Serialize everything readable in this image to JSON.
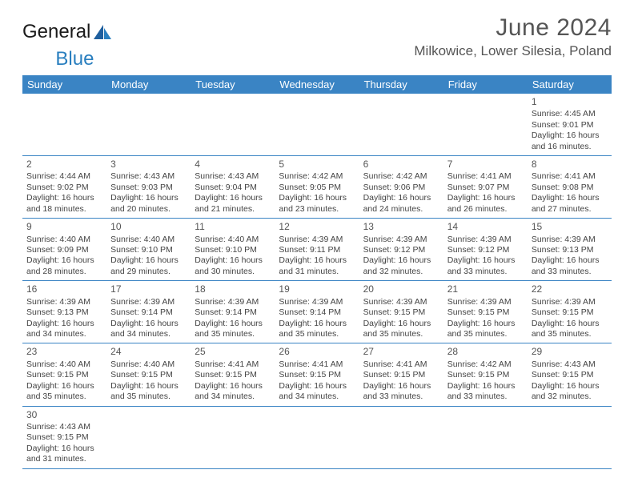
{
  "brand": {
    "part1": "General",
    "part2": "Blue"
  },
  "title": "June 2024",
  "location": "Milkowice, Lower Silesia, Poland",
  "colors": {
    "header_bg": "#3a84c4",
    "header_text": "#ffffff",
    "row_border": "#3a84c4",
    "text": "#444444",
    "title_color": "#555555",
    "logo_blue": "#2a7fbf"
  },
  "daynames": [
    "Sunday",
    "Monday",
    "Tuesday",
    "Wednesday",
    "Thursday",
    "Friday",
    "Saturday"
  ],
  "weeks": [
    [
      {
        "day": "",
        "info": ""
      },
      {
        "day": "",
        "info": ""
      },
      {
        "day": "",
        "info": ""
      },
      {
        "day": "",
        "info": ""
      },
      {
        "day": "",
        "info": ""
      },
      {
        "day": "",
        "info": ""
      },
      {
        "day": "1",
        "info": "Sunrise: 4:45 AM\nSunset: 9:01 PM\nDaylight: 16 hours and 16 minutes."
      }
    ],
    [
      {
        "day": "2",
        "info": "Sunrise: 4:44 AM\nSunset: 9:02 PM\nDaylight: 16 hours and 18 minutes."
      },
      {
        "day": "3",
        "info": "Sunrise: 4:43 AM\nSunset: 9:03 PM\nDaylight: 16 hours and 20 minutes."
      },
      {
        "day": "4",
        "info": "Sunrise: 4:43 AM\nSunset: 9:04 PM\nDaylight: 16 hours and 21 minutes."
      },
      {
        "day": "5",
        "info": "Sunrise: 4:42 AM\nSunset: 9:05 PM\nDaylight: 16 hours and 23 minutes."
      },
      {
        "day": "6",
        "info": "Sunrise: 4:42 AM\nSunset: 9:06 PM\nDaylight: 16 hours and 24 minutes."
      },
      {
        "day": "7",
        "info": "Sunrise: 4:41 AM\nSunset: 9:07 PM\nDaylight: 16 hours and 26 minutes."
      },
      {
        "day": "8",
        "info": "Sunrise: 4:41 AM\nSunset: 9:08 PM\nDaylight: 16 hours and 27 minutes."
      }
    ],
    [
      {
        "day": "9",
        "info": "Sunrise: 4:40 AM\nSunset: 9:09 PM\nDaylight: 16 hours and 28 minutes."
      },
      {
        "day": "10",
        "info": "Sunrise: 4:40 AM\nSunset: 9:10 PM\nDaylight: 16 hours and 29 minutes."
      },
      {
        "day": "11",
        "info": "Sunrise: 4:40 AM\nSunset: 9:10 PM\nDaylight: 16 hours and 30 minutes."
      },
      {
        "day": "12",
        "info": "Sunrise: 4:39 AM\nSunset: 9:11 PM\nDaylight: 16 hours and 31 minutes."
      },
      {
        "day": "13",
        "info": "Sunrise: 4:39 AM\nSunset: 9:12 PM\nDaylight: 16 hours and 32 minutes."
      },
      {
        "day": "14",
        "info": "Sunrise: 4:39 AM\nSunset: 9:12 PM\nDaylight: 16 hours and 33 minutes."
      },
      {
        "day": "15",
        "info": "Sunrise: 4:39 AM\nSunset: 9:13 PM\nDaylight: 16 hours and 33 minutes."
      }
    ],
    [
      {
        "day": "16",
        "info": "Sunrise: 4:39 AM\nSunset: 9:13 PM\nDaylight: 16 hours and 34 minutes."
      },
      {
        "day": "17",
        "info": "Sunrise: 4:39 AM\nSunset: 9:14 PM\nDaylight: 16 hours and 34 minutes."
      },
      {
        "day": "18",
        "info": "Sunrise: 4:39 AM\nSunset: 9:14 PM\nDaylight: 16 hours and 35 minutes."
      },
      {
        "day": "19",
        "info": "Sunrise: 4:39 AM\nSunset: 9:14 PM\nDaylight: 16 hours and 35 minutes."
      },
      {
        "day": "20",
        "info": "Sunrise: 4:39 AM\nSunset: 9:15 PM\nDaylight: 16 hours and 35 minutes."
      },
      {
        "day": "21",
        "info": "Sunrise: 4:39 AM\nSunset: 9:15 PM\nDaylight: 16 hours and 35 minutes."
      },
      {
        "day": "22",
        "info": "Sunrise: 4:39 AM\nSunset: 9:15 PM\nDaylight: 16 hours and 35 minutes."
      }
    ],
    [
      {
        "day": "23",
        "info": "Sunrise: 4:40 AM\nSunset: 9:15 PM\nDaylight: 16 hours and 35 minutes."
      },
      {
        "day": "24",
        "info": "Sunrise: 4:40 AM\nSunset: 9:15 PM\nDaylight: 16 hours and 35 minutes."
      },
      {
        "day": "25",
        "info": "Sunrise: 4:41 AM\nSunset: 9:15 PM\nDaylight: 16 hours and 34 minutes."
      },
      {
        "day": "26",
        "info": "Sunrise: 4:41 AM\nSunset: 9:15 PM\nDaylight: 16 hours and 34 minutes."
      },
      {
        "day": "27",
        "info": "Sunrise: 4:41 AM\nSunset: 9:15 PM\nDaylight: 16 hours and 33 minutes."
      },
      {
        "day": "28",
        "info": "Sunrise: 4:42 AM\nSunset: 9:15 PM\nDaylight: 16 hours and 33 minutes."
      },
      {
        "day": "29",
        "info": "Sunrise: 4:43 AM\nSunset: 9:15 PM\nDaylight: 16 hours and 32 minutes."
      }
    ],
    [
      {
        "day": "30",
        "info": "Sunrise: 4:43 AM\nSunset: 9:15 PM\nDaylight: 16 hours and 31 minutes."
      },
      {
        "day": "",
        "info": ""
      },
      {
        "day": "",
        "info": ""
      },
      {
        "day": "",
        "info": ""
      },
      {
        "day": "",
        "info": ""
      },
      {
        "day": "",
        "info": ""
      },
      {
        "day": "",
        "info": ""
      }
    ]
  ]
}
